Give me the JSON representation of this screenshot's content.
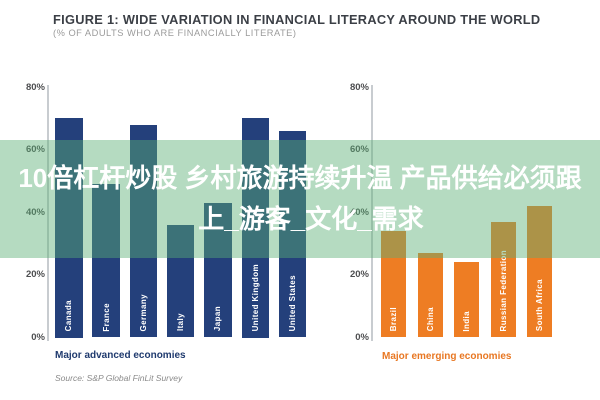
{
  "header": {
    "title": "FIGURE 1: WIDE VARIATION IN FINANCIAL LITERACY AROUND THE WORLD",
    "subtitle": "(% OF ADULTS WHO ARE FINANCIALLY LITERATE)"
  },
  "overlay": {
    "line1": "10倍杠杆炒股 乡村旅游持续升温 产品供给必须跟",
    "line2": "上_游客_文化_需求"
  },
  "source": "Source: S&P Global FinLit Survey",
  "colors": {
    "advanced_bar": "#24407b",
    "emerging_bar": "#ee7d23",
    "overlay_green": "rgba(92,176,118,0.45)",
    "advanced_label": "#1f3a6e",
    "emerging_label": "#e87722",
    "axis_text": "#4d4e50",
    "title_text": "#3b3f46"
  },
  "chart_data": [
    {
      "type": "bar",
      "title": "Major advanced economies",
      "categories": [
        "Canada",
        "France",
        "Germany",
        "Italy",
        "Japan",
        "United Kingdom",
        "United States"
      ],
      "values": [
        70,
        49,
        68,
        36,
        43,
        70,
        66
      ],
      "ylabel": "% of adults who are financially literate",
      "ylim": [
        0,
        80
      ],
      "yticks": [
        "80%",
        "60%",
        "40%",
        "20%",
        "0%"
      ],
      "grid": false,
      "legend": false
    },
    {
      "type": "bar",
      "title": "Major emerging economies",
      "categories": [
        "Brazil",
        "China",
        "India",
        "Russian Federation",
        "South Africa"
      ],
      "values": [
        34,
        27,
        24,
        37,
        42
      ],
      "ylabel": "% of adults who are financially literate",
      "ylim": [
        0,
        80
      ],
      "yticks": [
        "80%",
        "60%",
        "40%",
        "20%",
        "0%"
      ],
      "grid": false,
      "legend": false
    }
  ]
}
